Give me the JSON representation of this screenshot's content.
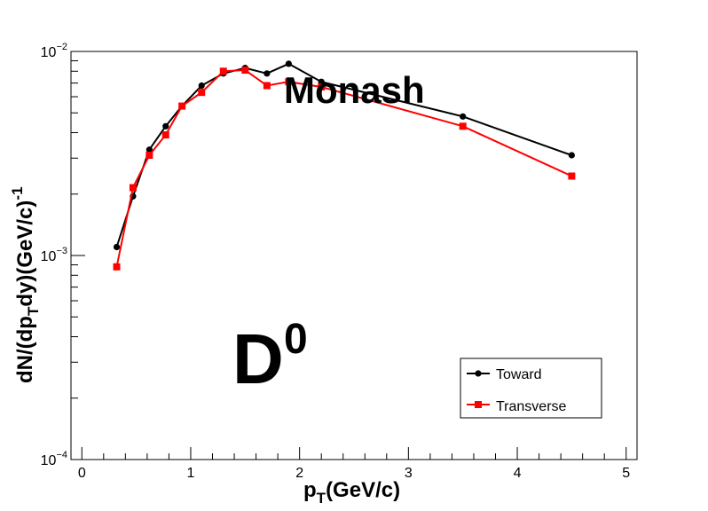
{
  "chart_data": {
    "type": "line",
    "xlabel_main": "p",
    "xlabel_sub": "T",
    "xlabel_rest": "(GeV/c)",
    "ylabel_a": "dN/(dp",
    "ylabel_sub": "T",
    "ylabel_b": "dy)(GeV/c)",
    "ylabel_sup": "-1",
    "xlim": [
      -0.1,
      5.1
    ],
    "ylim": [
      0.0001,
      0.01
    ],
    "yscale": "log",
    "x_ticks": [
      "0",
      "1",
      "2",
      "3",
      "4",
      "5"
    ],
    "y_ticks": [
      {
        "base": "10",
        "exp": "−4",
        "value": 0.0001
      },
      {
        "base": "10",
        "exp": "−3",
        "value": 0.001
      },
      {
        "base": "10",
        "exp": "−2",
        "value": 0.01
      }
    ],
    "grid": false,
    "legend_position": "bottom-right",
    "annotations": {
      "generator": "Monash",
      "particle": "D",
      "particle_sup": "0"
    },
    "series": [
      {
        "name": "Toward",
        "color": "#000000",
        "marker": "circle",
        "x": [
          0.32,
          0.47,
          0.62,
          0.77,
          0.92,
          1.1,
          1.3,
          1.5,
          1.7,
          1.9,
          2.2,
          3.5,
          4.5
        ],
        "y": [
          0.0011,
          0.00195,
          0.0033,
          0.0043,
          0.0054,
          0.0068,
          0.0078,
          0.0083,
          0.0078,
          0.0087,
          0.0071,
          0.0048,
          0.0031
        ]
      },
      {
        "name": "Transverse",
        "color": "#ff0000",
        "marker": "square",
        "x": [
          0.32,
          0.47,
          0.62,
          0.77,
          0.92,
          1.1,
          1.3,
          1.5,
          1.7,
          1.9,
          2.2,
          3.5,
          4.5
        ],
        "y": [
          0.00088,
          0.00215,
          0.0031,
          0.0039,
          0.0054,
          0.0063,
          0.008,
          0.0081,
          0.0068,
          0.0071,
          0.0067,
          0.0043,
          0.00245
        ]
      }
    ]
  }
}
